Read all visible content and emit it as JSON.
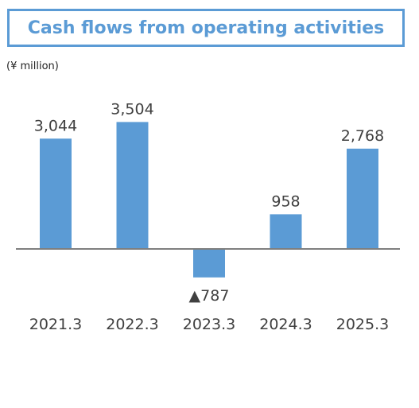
{
  "chart_data": {
    "type": "bar",
    "title": "Cash flows from operating activities",
    "unit": "(¥ million)",
    "categories": [
      "2021.3",
      "2022.3",
      "2023.3",
      "2024.3",
      "2025.3"
    ],
    "values": [
      3044,
      3504,
      -787,
      958,
      2768
    ],
    "value_labels": [
      "3,044",
      "3,504",
      "▲787",
      "958",
      "2,768"
    ],
    "xlabel": "",
    "ylabel": "",
    "grid": false,
    "legend": "none",
    "colors": {
      "bar": "#5b9bd5",
      "axis": "#7f7f7f",
      "title": "#5b9bd5",
      "text": "#404040"
    }
  }
}
